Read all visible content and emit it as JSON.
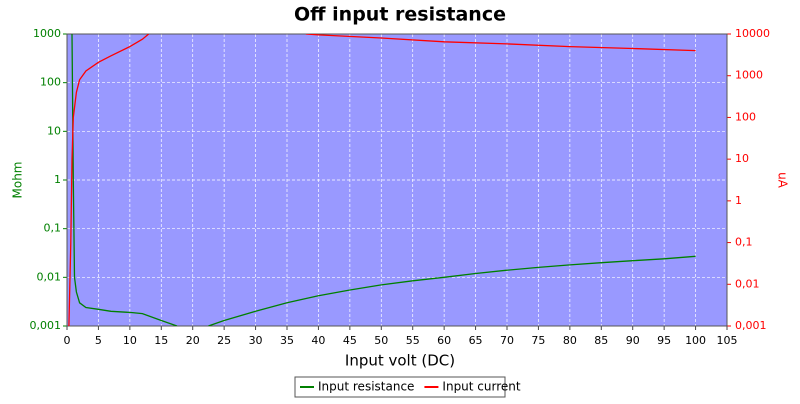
{
  "chart_data": {
    "type": "line",
    "title": "Off input resistance",
    "xlabel": "Input volt (DC)",
    "ylabel": "Mohm",
    "y2label": "uA",
    "xlim": [
      0,
      105
    ],
    "xticks": [
      0,
      5,
      10,
      15,
      20,
      25,
      30,
      35,
      40,
      45,
      50,
      55,
      60,
      65,
      70,
      75,
      80,
      85,
      90,
      95,
      100,
      105
    ],
    "ylim": [
      0.001,
      1000
    ],
    "yscale": "log",
    "yticks": [
      {
        "value": 0.001,
        "label": "0,001"
      },
      {
        "value": 0.01,
        "label": "0,01"
      },
      {
        "value": 0.1,
        "label": "0,1"
      },
      1,
      10,
      100,
      1000
    ],
    "y2lim": [
      0.001,
      10000
    ],
    "y2scale": "log",
    "y2ticks": [
      {
        "value": 0.001,
        "label": "0,001"
      },
      {
        "value": 0.01,
        "label": "0,01"
      },
      {
        "value": 0.1,
        "label": "0,1"
      },
      1,
      10,
      100,
      1000,
      10000
    ],
    "grid": true,
    "legend": "bottom",
    "series": [
      {
        "name": "Input resistance",
        "color": "#008000",
        "x": [
          0.8,
          1,
          1.2,
          1.5,
          2,
          3,
          5,
          7,
          10,
          12,
          15,
          17.5,
          20,
          22.5,
          25,
          30,
          35,
          40,
          45,
          50,
          55,
          60,
          65,
          70,
          75,
          80,
          85,
          90,
          95,
          100
        ],
        "values": [
          1000,
          1,
          0.01,
          0.005,
          0.003,
          0.0024,
          0.0022,
          0.002,
          0.0019,
          0.0018,
          0.0013,
          0.001,
          null,
          0.001,
          0.0013,
          0.002,
          0.003,
          0.0042,
          0.0055,
          0.007,
          0.0085,
          0.01,
          0.012,
          0.014,
          0.016,
          0.018,
          0.02,
          0.022,
          0.024,
          0.027
        ]
      },
      {
        "name": "Input current",
        "color": "#ff0000",
        "axis": "y2",
        "x": [
          0.3,
          0.6,
          0.8,
          1,
          1.5,
          2,
          3,
          5,
          7,
          10,
          12,
          13,
          25,
          38,
          40,
          50,
          60,
          70,
          80,
          90,
          100
        ],
        "values": [
          0.001,
          0.1,
          10,
          100,
          400,
          800,
          1300,
          2100,
          3000,
          5000,
          7500,
          10000,
          null,
          10000,
          9500,
          8000,
          6500,
          5800,
          5000,
          4500,
          4000
        ]
      }
    ]
  }
}
